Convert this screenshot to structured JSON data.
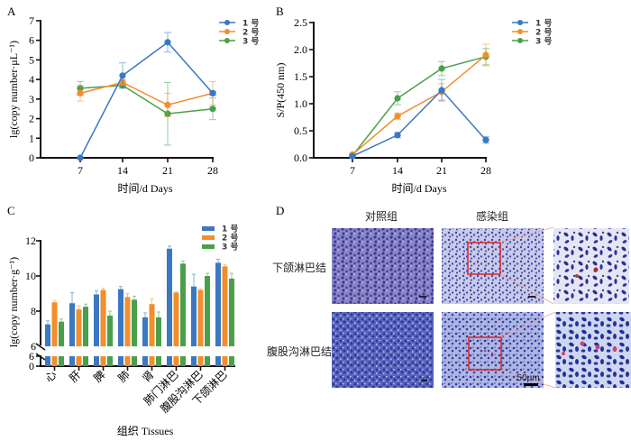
{
  "panels": {
    "A": "A",
    "B": "B",
    "C": "C",
    "D": "D"
  },
  "colors": {
    "series1": "#3a78c2",
    "series2": "#f28e2b",
    "series3": "#4aa04a",
    "axis": "#111111",
    "stain_bg": "#c9cde8",
    "nucleus": "#3a3fa0",
    "box": "#e02020",
    "zoom_line": "#f0a0a0"
  },
  "chart_data": [
    {
      "id": "A",
      "type": "line",
      "title": "",
      "xlabel": "时间/d Days",
      "ylabel": "lg(copy number·μL⁻¹)",
      "x": [
        7,
        14,
        21,
        28
      ],
      "ylim": [
        0,
        7
      ],
      "yticks": [
        0,
        1,
        2,
        3,
        4,
        5,
        6,
        7
      ],
      "grid": false,
      "legend": "top-right",
      "series": [
        {
          "name": "1 号",
          "values": [
            0,
            4.2,
            5.9,
            3.3
          ],
          "errors": [
            0,
            0.65,
            0.5,
            0.1
          ]
        },
        {
          "name": "2 号",
          "values": [
            3.3,
            3.85,
            2.7,
            3.3
          ],
          "errors": [
            0.4,
            0.15,
            0.6,
            0.6
          ]
        },
        {
          "name": "3 号",
          "values": [
            3.55,
            3.7,
            2.25,
            2.5
          ],
          "errors": [
            0.35,
            0.1,
            1.6,
            0.55
          ]
        }
      ]
    },
    {
      "id": "B",
      "type": "line",
      "title": "",
      "xlabel": "时间/d Days",
      "ylabel": "S/P(450 nm)",
      "x": [
        7,
        14,
        21,
        28
      ],
      "ylim": [
        0,
        2.5
      ],
      "yticks": [
        "0.0",
        "0.5",
        "1.0",
        "1.5",
        "2.0",
        "2.5"
      ],
      "grid": false,
      "legend": "top-right",
      "series": [
        {
          "name": "1 号",
          "values": [
            0.03,
            0.42,
            1.25,
            0.33
          ],
          "errors": [
            0.02,
            0.05,
            0.2,
            0.06
          ]
        },
        {
          "name": "2 号",
          "values": [
            0.06,
            0.77,
            1.22,
            1.9
          ],
          "errors": [
            0.02,
            0.06,
            0.15,
            0.2
          ]
        },
        {
          "name": "3 号",
          "values": [
            0.04,
            1.1,
            1.65,
            1.87
          ],
          "errors": [
            0.02,
            0.12,
            0.13,
            0.15
          ]
        }
      ]
    },
    {
      "id": "C",
      "type": "bar",
      "title": "",
      "xlabel": "组织 Tissues",
      "ylabel": "lg(copy number·g⁻¹)",
      "categories": [
        "心",
        "肝",
        "脾",
        "肺",
        "肾",
        "肺门淋巴",
        "腹股沟淋巴",
        "下颌淋巴"
      ],
      "ylim": [
        0,
        12
      ],
      "axis_break": [
        6,
        6
      ],
      "yticks_upper": [
        6,
        8,
        10,
        12
      ],
      "yticks_lower": [
        0,
        6
      ],
      "grid": false,
      "legend": "top-right",
      "series": [
        {
          "name": "1 号",
          "values": [
            7.25,
            8.45,
            8.95,
            9.25,
            7.65,
            11.55,
            9.4,
            10.75
          ],
          "errors": [
            0.2,
            0.6,
            0.2,
            0.15,
            0.25,
            0.15,
            0.7,
            0.2
          ]
        },
        {
          "name": "2 号",
          "values": [
            8.5,
            8.1,
            9.2,
            8.8,
            8.4,
            9.05,
            9.2,
            10.55
          ],
          "errors": [
            0.1,
            0.2,
            0.1,
            0.2,
            0.3,
            0.05,
            0.05,
            0.1
          ]
        },
        {
          "name": "3 号",
          "values": [
            7.4,
            8.25,
            7.75,
            8.65,
            7.65,
            10.7,
            10.0,
            9.85
          ],
          "errors": [
            0.15,
            0.15,
            0.25,
            0.2,
            0.3,
            0.15,
            0.15,
            0.3
          ]
        }
      ]
    }
  ],
  "panelD": {
    "col_headers": [
      "对照组",
      "感染组"
    ],
    "row_labels": [
      "下颌淋巴结",
      "腹股沟淋巴结"
    ],
    "scale_bar": "50μm"
  }
}
